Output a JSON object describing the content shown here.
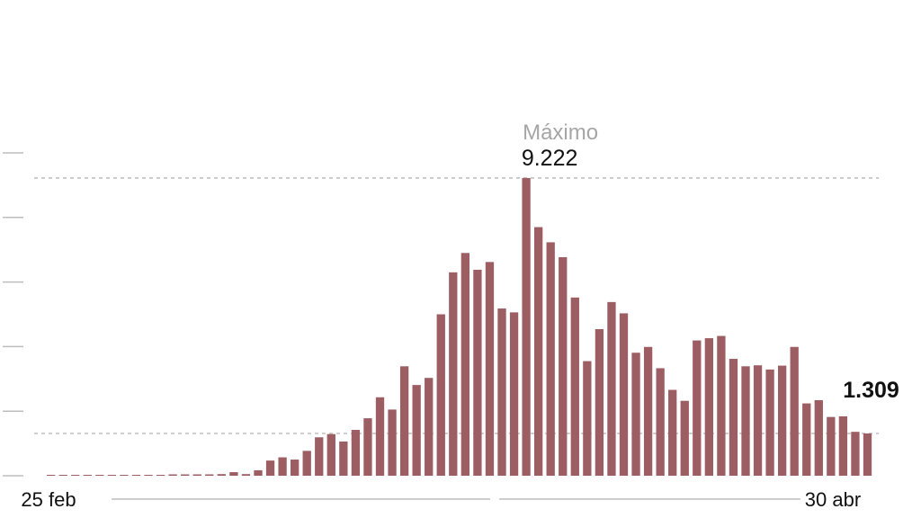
{
  "chart_data": {
    "type": "bar",
    "title": "",
    "xlabel": "",
    "ylabel": "",
    "x_start_label": "25 feb",
    "x_end_label": "30 abr",
    "ylim": [
      0,
      10000
    ],
    "y_ticks": [
      0,
      2000,
      4000,
      6000,
      8000,
      10000
    ],
    "grid": false,
    "reference_lines": [
      9222,
      1309
    ],
    "max_annotation": {
      "label": "Máximo",
      "value_text": "9.222",
      "value": 9222
    },
    "last_annotation": {
      "value_text": "1.309",
      "value": 1309
    },
    "values": [
      0,
      0,
      0,
      0,
      0,
      0,
      0,
      0,
      0,
      0,
      25,
      30,
      35,
      40,
      50,
      110,
      50,
      170,
      470,
      570,
      500,
      770,
      1190,
      1290,
      1060,
      1420,
      1780,
      2430,
      2050,
      3390,
      2810,
      3030,
      5000,
      6300,
      6900,
      6380,
      6620,
      5180,
      5060,
      9222,
      7700,
      7230,
      6770,
      5520,
      3550,
      4540,
      5380,
      5030,
      3810,
      3990,
      3330,
      2660,
      2320,
      4190,
      4260,
      4330,
      3620,
      3390,
      3420,
      3290,
      3410,
      3990,
      2240,
      2340,
      1820,
      1840,
      1360,
      1309
    ],
    "colors": {
      "bar": "#9c5d63",
      "reference_line": "#b3b3b3",
      "axis": "#bdbdbd",
      "max_label": "#a6a6a6",
      "text": "#111111"
    }
  }
}
